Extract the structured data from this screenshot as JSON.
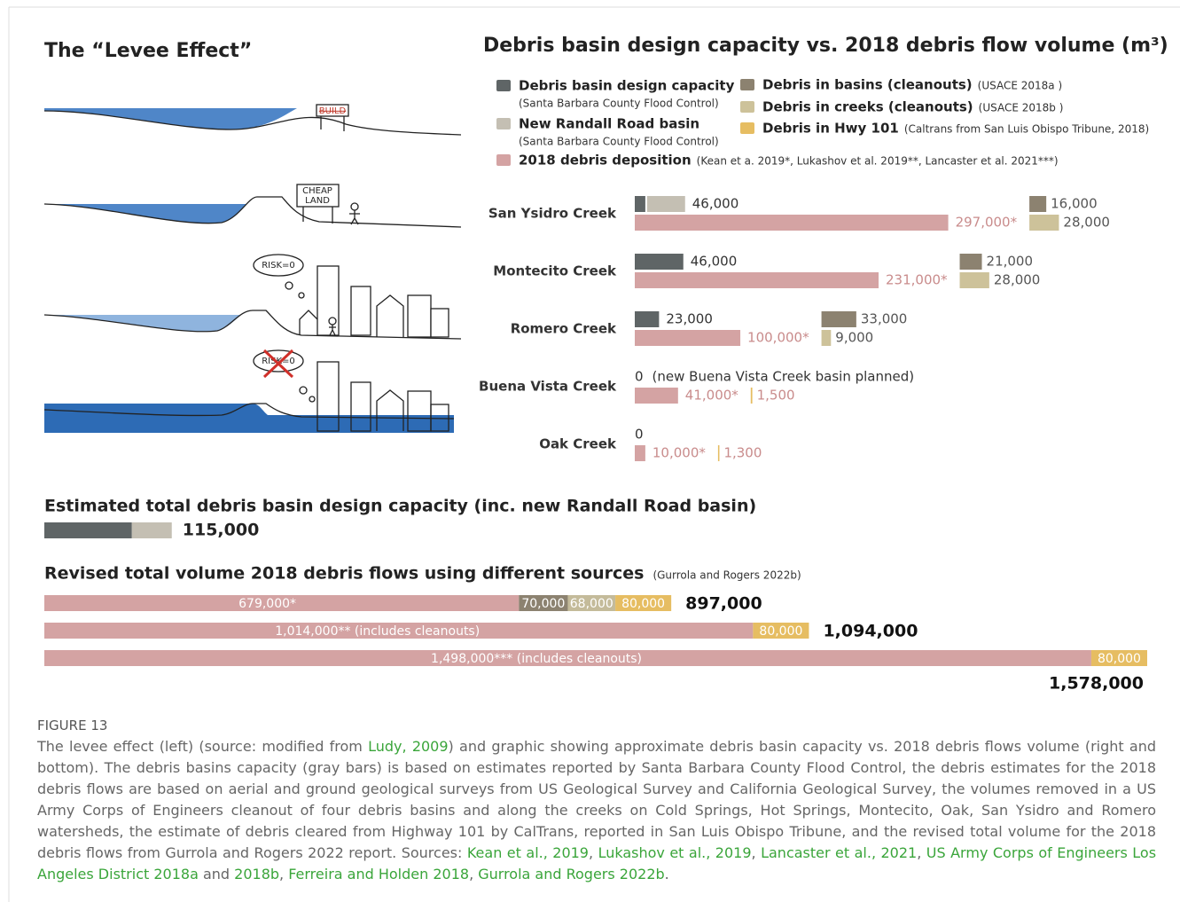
{
  "levee": {
    "title": "The “Levee Effect”",
    "signs": [
      "BUILD",
      "CHEAP",
      "LAND",
      "RISK=0",
      "RISK=0"
    ]
  },
  "chart": {
    "title": "Debris basin design capacity vs. 2018 debris flow volume (m³)",
    "legend": [
      {
        "name": "Debris basin design capacity",
        "source": "(Santa Barbara County Flood Control)",
        "color": "#5f6566"
      },
      {
        "name": "New Randall Road basin",
        "source": "(Santa Barbara County Flood Control)",
        "color": "#c4bfb3"
      },
      {
        "name": "2018 debris deposition",
        "source": "(Kean et a. 2019*, Lukashov et al. 2019**, Lancaster et al. 2021***)",
        "color": "#d4a3a3"
      },
      {
        "name": "Debris in basins (cleanouts)",
        "source": "(USACE 2018a )",
        "color": "#8c8270"
      },
      {
        "name": "Debris in creeks (cleanouts)",
        "source": "(USACE 2018b )",
        "color": "#cdc29a"
      },
      {
        "name": "Debris in Hwy 101",
        "source": "(Caltrans from San Luis Obispo Tribune, 2018)",
        "color": "#e6bd62"
      }
    ],
    "creeks": [
      {
        "name": "San Ysidro Creek",
        "capacity": {
          "parts": [
            10000,
            36000
          ],
          "value": 46000,
          "label": "46,000"
        },
        "deposition": {
          "value": 297000,
          "label": "297,000*"
        },
        "basins": {
          "value": 16000,
          "label": "16,000"
        },
        "creeks": {
          "value": 28000,
          "label": "28,000"
        }
      },
      {
        "name": "Montecito Creek",
        "capacity": {
          "parts": [
            46000
          ],
          "value": 46000,
          "label": "46,000"
        },
        "deposition": {
          "value": 231000,
          "label": "231,000*"
        },
        "basins": {
          "value": 21000,
          "label": "21,000"
        },
        "creeks": {
          "value": 28000,
          "label": "28,000"
        }
      },
      {
        "name": "Romero Creek",
        "capacity": {
          "parts": [
            23000
          ],
          "value": 23000,
          "label": "23,000"
        },
        "deposition": {
          "value": 100000,
          "label": "100,000*"
        },
        "basins": {
          "value": 33000,
          "label": "33,000"
        },
        "creeks": {
          "value": 9000,
          "label": "9,000"
        }
      },
      {
        "name": "Buena Vista Creek",
        "capacity": {
          "parts": [],
          "value": 0,
          "note": "(new Buena Vista Creek basin planned)"
        },
        "deposition": {
          "value": 41000,
          "label": "41,000*"
        },
        "hwy": {
          "value": 1500,
          "label": "1,500"
        }
      },
      {
        "name": "Oak Creek",
        "capacity": {
          "parts": [],
          "value": 0
        },
        "deposition": {
          "value": 10000,
          "label": "10,000*"
        },
        "hwy": {
          "value": 1300,
          "label": "1,300"
        }
      }
    ]
  },
  "capacity_total": {
    "title": "Estimated total debris basin design capacity (inc. new Randall Road basin)",
    "parts": [
      79000,
      36000
    ],
    "value": 115000,
    "label": "115,000"
  },
  "revised": {
    "title": "Revised total volume 2018 debris flows using different sources",
    "source": "(Gurrola and Rogers 2022b)",
    "rows": [
      {
        "segments": [
          {
            "value": 679000,
            "label": "679,000*",
            "color": "#d4a3a3"
          },
          {
            "value": 70000,
            "label": "70,000",
            "color": "#8c8270"
          },
          {
            "value": 68000,
            "label": "68,000",
            "color": "#c4bb9a"
          },
          {
            "value": 80000,
            "label": "80,000",
            "color": "#e6bd62"
          }
        ],
        "total": {
          "value": 897000,
          "label": "897,000"
        }
      },
      {
        "segments": [
          {
            "value": 1014000,
            "label": "1,014,000** (includes cleanouts)",
            "color": "#d4a3a3"
          },
          {
            "value": 80000,
            "label": "80,000",
            "color": "#e6bd62"
          }
        ],
        "total": {
          "value": 1094000,
          "label": "1,094,000"
        }
      },
      {
        "segments": [
          {
            "value": 1498000,
            "label": "1,498,000*** (includes cleanouts)",
            "color": "#d4a3a3"
          },
          {
            "value": 80000,
            "label": "80,000",
            "color": "#e6bd62"
          }
        ],
        "total": {
          "value": 1578000,
          "label": "1,578,000"
        }
      }
    ]
  },
  "caption": {
    "label": "FIGURE 13",
    "parts": [
      {
        "text": "The levee effect (left) (source: modified from ",
        "link": false
      },
      {
        "text": "Ludy, 2009",
        "link": true
      },
      {
        "text": ") and graphic showing approximate debris basin capacity vs. 2018 debris flows volume (right and bottom). The debris basins capacity (gray bars) is based on estimates reported by Santa Barbara County Flood Control, the debris estimates for the 2018 debris flows are based on aerial and ground geological surveys from US Geological Survey and California Geological Survey, the volumes removed in a US Army Corps of Engineers cleanout of four debris basins and along the creeks on Cold Springs, Hot Springs, Montecito, Oak, San Ysidro and Romero watersheds, the estimate of debris cleared from Highway 101 by CalTrans, reported in San Luis Obispo Tribune, and the revised total volume for the 2018 debris flows from Gurrola and Rogers 2022 report. Sources: ",
        "link": false
      },
      {
        "text": "Kean et al., 2019",
        "link": true
      },
      {
        "text": ", ",
        "link": false
      },
      {
        "text": "Lukashov et al., 2019",
        "link": true
      },
      {
        "text": ", ",
        "link": false
      },
      {
        "text": "Lancaster et al., 2021",
        "link": true
      },
      {
        "text": ", ",
        "link": false
      },
      {
        "text": "US Army Corps of Engineers Los Angeles District 2018a",
        "link": true
      },
      {
        "text": " and ",
        "link": false
      },
      {
        "text": "2018b",
        "link": true
      },
      {
        "text": ", ",
        "link": false
      },
      {
        "text": "Ferreira and Holden 2018",
        "link": true
      },
      {
        "text": ", ",
        "link": false
      },
      {
        "text": "Gurrola and Rogers 2022b",
        "link": true
      },
      {
        "text": ".",
        "link": false
      }
    ]
  }
}
